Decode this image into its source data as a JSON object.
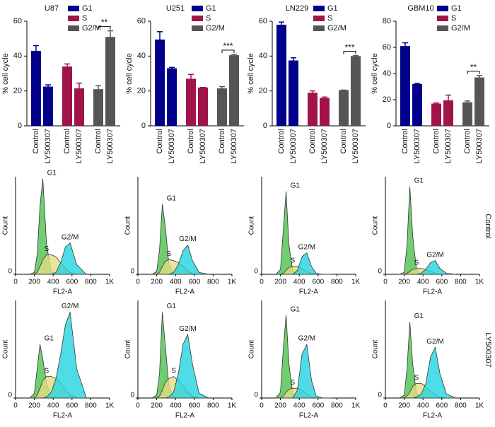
{
  "chart_data": [
    {
      "type": "bar",
      "title": "U87",
      "ylabel": "% cell cycle",
      "categories": [
        "Control",
        "LY500307"
      ],
      "ylim": [
        0,
        60
      ],
      "yticks": [
        0,
        20,
        40,
        60
      ],
      "annotation": "**",
      "series": [
        {
          "name": "G1",
          "color": "#00008b",
          "values": [
            43,
            22.5
          ],
          "errors": [
            3,
            1
          ]
        },
        {
          "name": "S",
          "color": "#a0144a",
          "values": [
            34,
            21.5
          ],
          "errors": [
            1.5,
            3
          ]
        },
        {
          "name": "G2/M",
          "color": "#555555",
          "values": [
            21,
            51
          ],
          "errors": [
            2,
            3.5
          ]
        }
      ]
    },
    {
      "type": "bar",
      "title": "U251",
      "ylabel": "% cell cycle",
      "categories": [
        "Control",
        "LY500307"
      ],
      "ylim": [
        0,
        60
      ],
      "yticks": [
        0,
        20,
        40,
        60
      ],
      "annotation": "***",
      "series": [
        {
          "name": "G1",
          "color": "#00008b",
          "values": [
            49.5,
            33
          ],
          "errors": [
            4.5,
            0.5
          ]
        },
        {
          "name": "S",
          "color": "#a0144a",
          "values": [
            27,
            22
          ],
          "errors": [
            2.5,
            0
          ]
        },
        {
          "name": "G2/M",
          "color": "#555555",
          "values": [
            21.5,
            40.5
          ],
          "errors": [
            1,
            0.5
          ]
        }
      ]
    },
    {
      "type": "bar",
      "title": "LN229",
      "ylabel": "% cell cycle",
      "categories": [
        "Control",
        "LY500307"
      ],
      "ylim": [
        0,
        60
      ],
      "yticks": [
        0,
        20,
        40,
        60
      ],
      "annotation": "***",
      "series": [
        {
          "name": "G1",
          "color": "#00008b",
          "values": [
            58,
            37.5
          ],
          "errors": [
            1.5,
            1.5
          ]
        },
        {
          "name": "S",
          "color": "#a0144a",
          "values": [
            19,
            16
          ],
          "errors": [
            1,
            0.5
          ]
        },
        {
          "name": "G2/M",
          "color": "#555555",
          "values": [
            20.5,
            40
          ],
          "errors": [
            0,
            0.3
          ]
        }
      ]
    },
    {
      "type": "bar",
      "title": "GBM10",
      "ylabel": "% cell cycle",
      "categories": [
        "Control",
        "LY500307"
      ],
      "ylim": [
        0,
        80
      ],
      "yticks": [
        0,
        20,
        40,
        60,
        80
      ],
      "annotation": "**",
      "series": [
        {
          "name": "G1",
          "color": "#00008b",
          "values": [
            61,
            32
          ],
          "errors": [
            2.5,
            0.5
          ]
        },
        {
          "name": "S",
          "color": "#a0144a",
          "values": [
            17,
            19.5
          ],
          "errors": [
            0.5,
            4
          ]
        },
        {
          "name": "G2/M",
          "color": "#555555",
          "values": [
            18,
            37
          ],
          "errors": [
            1,
            1.5
          ]
        }
      ]
    },
    {
      "type": "area",
      "xlabel": "FL2-A",
      "ylabel": "Count",
      "xlim": [
        0,
        1000
      ],
      "ylim": [
        0,
        100
      ],
      "yticks": [
        0
      ],
      "xticks": [
        0,
        200,
        400,
        600,
        800,
        {
          "value": 1000,
          "label": "1K"
        }
      ],
      "x": [
        150,
        200,
        230,
        260,
        290,
        330,
        380,
        430,
        480,
        530,
        580,
        650,
        750
      ],
      "series": [
        {
          "name": "G1",
          "color": "#4cc24c",
          "values": [
            0,
            2,
            20,
            70,
            98,
            30,
            3,
            0,
            0,
            0,
            0,
            0,
            0
          ]
        },
        {
          "name": "S",
          "color": "#e3dc82",
          "values": [
            0,
            0,
            2,
            8,
            15,
            20,
            20,
            18,
            12,
            6,
            2,
            0,
            0
          ]
        },
        {
          "name": "G2/M",
          "color": "#22d4e0",
          "values": [
            0,
            0,
            0,
            0,
            0,
            0,
            0,
            2,
            12,
            28,
            32,
            10,
            0
          ]
        }
      ]
    },
    {
      "type": "area",
      "xlabel": "FL2-A",
      "ylabel": "Count",
      "xlim": [
        0,
        1000
      ],
      "ylim": [
        0,
        100
      ],
      "yticks": [
        0
      ],
      "xticks": [
        0,
        200,
        400,
        600,
        800,
        {
          "value": 1000,
          "label": "1K"
        }
      ],
      "x": [
        150,
        200,
        230,
        260,
        290,
        330,
        380,
        430,
        480,
        530,
        580,
        650,
        750
      ],
      "series": [
        {
          "name": "G1",
          "color": "#4cc24c",
          "values": [
            0,
            3,
            25,
            72,
            50,
            10,
            1,
            0,
            0,
            0,
            0,
            0,
            0
          ]
        },
        {
          "name": "S",
          "color": "#e3dc82",
          "values": [
            0,
            0,
            2,
            8,
            13,
            15,
            14,
            12,
            8,
            3,
            1,
            0,
            0
          ]
        },
        {
          "name": "G2/M",
          "color": "#22d4e0",
          "values": [
            0,
            0,
            0,
            0,
            0,
            0,
            2,
            10,
            24,
            30,
            14,
            2,
            0
          ]
        }
      ]
    },
    {
      "type": "area",
      "xlabel": "FL2-A",
      "ylabel": "Count",
      "xlim": [
        0,
        1000
      ],
      "ylim": [
        0,
        100
      ],
      "yticks": [
        0
      ],
      "xticks": [
        0,
        200,
        400,
        600,
        800,
        {
          "value": 1000,
          "label": "1K"
        }
      ],
      "x": [
        150,
        200,
        230,
        260,
        290,
        330,
        380,
        430,
        480,
        530,
        580,
        650,
        750
      ],
      "series": [
        {
          "name": "G1",
          "color": "#4cc24c",
          "values": [
            0,
            5,
            45,
            85,
            30,
            4,
            0,
            0,
            0,
            0,
            0,
            0,
            0
          ]
        },
        {
          "name": "S",
          "color": "#e3dc82",
          "values": [
            0,
            0,
            1,
            4,
            7,
            8,
            8,
            6,
            3,
            1,
            0,
            0,
            0
          ]
        },
        {
          "name": "G2/M",
          "color": "#22d4e0",
          "values": [
            0,
            0,
            0,
            0,
            0,
            0,
            4,
            18,
            22,
            8,
            1,
            0,
            0
          ]
        }
      ]
    },
    {
      "type": "area",
      "xlabel": "FL2-A",
      "ylabel": "Count",
      "xlim": [
        0,
        1000
      ],
      "ylim": [
        0,
        100
      ],
      "yticks": [
        0
      ],
      "xticks": [
        0,
        200,
        400,
        600,
        800,
        {
          "value": 1000,
          "label": "1K"
        }
      ],
      "x": [
        150,
        200,
        230,
        260,
        290,
        330,
        380,
        430,
        480,
        530,
        580,
        650,
        750
      ],
      "series": [
        {
          "name": "G1",
          "color": "#4cc24c",
          "values": [
            0,
            2,
            30,
            90,
            40,
            5,
            0,
            0,
            0,
            0,
            0,
            0,
            0
          ]
        },
        {
          "name": "S",
          "color": "#e3dc82",
          "values": [
            0,
            0,
            1,
            3,
            5,
            6,
            6,
            5,
            3,
            1,
            0,
            0,
            0
          ]
        },
        {
          "name": "G2/M",
          "color": "#22d4e0",
          "values": [
            0,
            0,
            0,
            0,
            0,
            0,
            1,
            5,
            12,
            14,
            6,
            1,
            0
          ]
        }
      ]
    },
    {
      "type": "area",
      "xlabel": "FL2-A",
      "ylabel": "Count",
      "xlim": [
        0,
        1000
      ],
      "ylim": [
        0,
        100
      ],
      "yticks": [
        0
      ],
      "xticks": [
        0,
        200,
        400,
        600,
        800,
        {
          "value": 1000,
          "label": "1K"
        }
      ],
      "x": [
        150,
        200,
        230,
        260,
        290,
        330,
        380,
        430,
        480,
        530,
        580,
        650,
        750
      ],
      "series": [
        {
          "name": "G1",
          "color": "#4cc24c",
          "values": [
            0,
            5,
            30,
            55,
            40,
            15,
            2,
            0,
            0,
            0,
            0,
            0,
            0
          ]
        },
        {
          "name": "S",
          "color": "#e3dc82",
          "values": [
            0,
            0,
            3,
            10,
            18,
            22,
            22,
            20,
            15,
            8,
            3,
            0,
            0
          ]
        },
        {
          "name": "G2/M",
          "color": "#22d4e0",
          "values": [
            0,
            0,
            0,
            0,
            0,
            1,
            6,
            20,
            45,
            75,
            88,
            30,
            1
          ]
        }
      ]
    },
    {
      "type": "area",
      "xlabel": "FL2-A",
      "ylabel": "Count",
      "xlim": [
        0,
        1000
      ],
      "ylim": [
        0,
        100
      ],
      "yticks": [
        0
      ],
      "xticks": [
        0,
        200,
        400,
        600,
        800,
        {
          "value": 1000,
          "label": "1K"
        }
      ],
      "x": [
        150,
        200,
        230,
        260,
        290,
        330,
        380,
        430,
        480,
        530,
        580,
        650,
        750
      ],
      "series": [
        {
          "name": "G1",
          "color": "#4cc24c",
          "values": [
            0,
            3,
            25,
            88,
            55,
            12,
            1,
            0,
            0,
            0,
            0,
            0,
            0
          ]
        },
        {
          "name": "S",
          "color": "#e3dc82",
          "values": [
            0,
            0,
            2,
            8,
            16,
            20,
            22,
            18,
            12,
            6,
            2,
            0,
            0
          ]
        },
        {
          "name": "G2/M",
          "color": "#22d4e0",
          "values": [
            0,
            0,
            0,
            0,
            0,
            1,
            6,
            25,
            55,
            65,
            35,
            5,
            0
          ]
        }
      ]
    },
    {
      "type": "area",
      "xlabel": "FL2-A",
      "ylabel": "Count",
      "xlim": [
        0,
        1000
      ],
      "ylim": [
        0,
        100
      ],
      "yticks": [
        0
      ],
      "xticks": [
        0,
        200,
        400,
        600,
        800,
        {
          "value": 1000,
          "label": "1K"
        }
      ],
      "x": [
        150,
        200,
        230,
        260,
        290,
        330,
        380,
        430,
        480,
        530,
        580,
        650,
        750
      ],
      "series": [
        {
          "name": "G1",
          "color": "#4cc24c",
          "values": [
            0,
            6,
            50,
            85,
            35,
            5,
            0,
            0,
            0,
            0,
            0,
            0,
            0
          ]
        },
        {
          "name": "S",
          "color": "#e3dc82",
          "values": [
            0,
            0,
            2,
            6,
            9,
            10,
            10,
            8,
            4,
            1,
            0,
            0,
            0
          ]
        },
        {
          "name": "G2/M",
          "color": "#22d4e0",
          "values": [
            0,
            0,
            0,
            0,
            0,
            0,
            8,
            45,
            55,
            18,
            2,
            0,
            0
          ]
        }
      ]
    },
    {
      "type": "area",
      "xlabel": "FL2-A",
      "ylabel": "Count",
      "xlim": [
        0,
        1000
      ],
      "ylim": [
        0,
        100
      ],
      "yticks": [
        0
      ],
      "xticks": [
        0,
        200,
        400,
        600,
        800,
        {
          "value": 1000,
          "label": "1K"
        }
      ],
      "x": [
        150,
        200,
        230,
        260,
        290,
        330,
        380,
        430,
        480,
        530,
        580,
        650,
        750
      ],
      "series": [
        {
          "name": "G1",
          "color": "#4cc24c",
          "values": [
            0,
            3,
            30,
            78,
            35,
            5,
            0,
            0,
            0,
            0,
            0,
            0,
            0
          ]
        },
        {
          "name": "S",
          "color": "#e3dc82",
          "values": [
            0,
            0,
            2,
            6,
            12,
            15,
            15,
            12,
            7,
            3,
            1,
            0,
            0
          ]
        },
        {
          "name": "G2/M",
          "color": "#22d4e0",
          "values": [
            0,
            0,
            0,
            0,
            0,
            1,
            4,
            15,
            42,
            52,
            25,
            4,
            0
          ]
        }
      ]
    }
  ],
  "row_labels": [
    "Control",
    "LY500307"
  ]
}
